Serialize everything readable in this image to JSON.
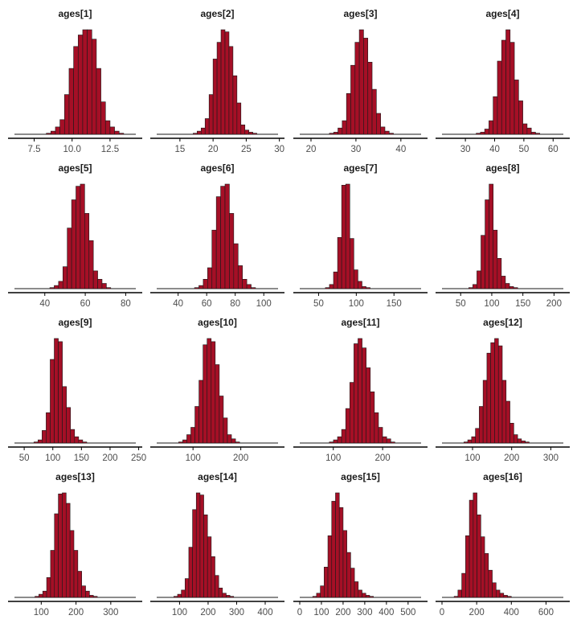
{
  "colors": {
    "bar_fill": "#a50f26",
    "bar_stroke": "#1a1a1a",
    "axis": "#000000"
  },
  "chart_data": [
    {
      "type": "bar",
      "title": "ages[1]",
      "xlim": [
        6.2,
        14.2
      ],
      "ticks": [
        7.5,
        10.0,
        12.5
      ],
      "tick_labels": [
        "7.5",
        "10.0",
        "12.5"
      ],
      "x_start": 8.3,
      "bin_width": 0.3,
      "counts": [
        0.01,
        0.03,
        0.07,
        0.14,
        0.38,
        0.63,
        0.84,
        0.95,
        1.0,
        1.0,
        0.91,
        0.63,
        0.31,
        0.13,
        0.07,
        0.03,
        0.01
      ]
    },
    {
      "type": "bar",
      "title": "ages[2]",
      "xlim": [
        11.5,
        29.8
      ],
      "ticks": [
        15,
        20,
        25,
        30
      ],
      "tick_labels": [
        "15",
        "20",
        "25",
        "30"
      ],
      "x_start": 17.0,
      "bin_width": 0.6,
      "counts": [
        0.01,
        0.03,
        0.06,
        0.15,
        0.38,
        0.72,
        0.88,
        1.0,
        0.98,
        0.84,
        0.56,
        0.3,
        0.09,
        0.04,
        0.02,
        0.01
      ]
    },
    {
      "type": "bar",
      "title": "ages[3]",
      "xlim": [
        17.5,
        44.5
      ],
      "ticks": [
        20,
        30,
        40
      ],
      "tick_labels": [
        "20",
        "30",
        "40"
      ],
      "x_start": 24.1,
      "bin_width": 0.95,
      "counts": [
        0.01,
        0.02,
        0.06,
        0.13,
        0.39,
        0.66,
        0.88,
        1.0,
        0.92,
        0.69,
        0.43,
        0.2,
        0.07,
        0.03,
        0.01
      ]
    },
    {
      "type": "bar",
      "title": "ages[4]",
      "xlim": [
        22.0,
        63.5
      ],
      "ticks": [
        30,
        40,
        50,
        60
      ],
      "tick_labels": [
        "30",
        "40",
        "50",
        "60"
      ],
      "x_start": 33.7,
      "bin_width": 1.45,
      "counts": [
        0.01,
        0.02,
        0.05,
        0.13,
        0.36,
        0.7,
        0.9,
        1.0,
        0.88,
        0.52,
        0.32,
        0.1,
        0.06,
        0.02,
        0.01
      ]
    },
    {
      "type": "bar",
      "title": "ages[5]",
      "xlim": [
        25.0,
        85.0
      ],
      "ticks": [
        40,
        60,
        80
      ],
      "tick_labels": [
        "40",
        "60",
        "80"
      ],
      "x_start": 42.5,
      "bin_width": 2.15,
      "counts": [
        0.01,
        0.03,
        0.07,
        0.21,
        0.58,
        0.85,
        0.98,
        1.0,
        0.72,
        0.46,
        0.17,
        0.09,
        0.05,
        0.01
      ]
    },
    {
      "type": "bar",
      "title": "ages[6]",
      "xlim": [
        25.0,
        110.0
      ],
      "ticks": [
        40,
        60,
        80,
        100
      ],
      "tick_labels": [
        "40",
        "60",
        "80",
        "100"
      ],
      "x_start": 51.5,
      "bin_width": 3.05,
      "counts": [
        0.01,
        0.03,
        0.09,
        0.2,
        0.56,
        0.88,
        0.98,
        1.0,
        0.72,
        0.43,
        0.22,
        0.09,
        0.04,
        0.01
      ]
    },
    {
      "type": "bar",
      "title": "ages[7]",
      "xlim": [
        25.0,
        186.0
      ],
      "ticks": [
        50,
        100,
        150
      ],
      "tick_labels": [
        "50",
        "100",
        "150"
      ],
      "x_start": 59.0,
      "bin_width": 5.4,
      "counts": [
        0.01,
        0.04,
        0.16,
        0.49,
        0.99,
        1.0,
        0.48,
        0.18,
        0.07,
        0.02,
        0.01
      ]
    },
    {
      "type": "bar",
      "title": "ages[8]",
      "xlim": [
        20.0,
        215.0
      ],
      "ticks": [
        50,
        100,
        150,
        200
      ],
      "tick_labels": [
        "50",
        "100",
        "150",
        "200"
      ],
      "x_start": 63.0,
      "bin_width": 6.55,
      "counts": [
        0.01,
        0.04,
        0.17,
        0.51,
        0.85,
        1.0,
        0.56,
        0.29,
        0.12,
        0.05,
        0.02,
        0.01
      ]
    },
    {
      "type": "bar",
      "title": "ages[9]",
      "xlim": [
        33.0,
        245.0
      ],
      "ticks": [
        50,
        100,
        150,
        200,
        250
      ],
      "tick_labels": [
        "50",
        "100",
        "150",
        "200",
        "250"
      ],
      "x_start": 67.0,
      "bin_width": 7.1,
      "counts": [
        0.01,
        0.03,
        0.12,
        0.29,
        0.8,
        1.0,
        0.97,
        0.54,
        0.34,
        0.13,
        0.06,
        0.03,
        0.01
      ]
    },
    {
      "type": "bar",
      "title": "ages[10]",
      "xlim": [
        24.0,
        278.0
      ],
      "ticks": [
        100,
        200
      ],
      "tick_labels": [
        "100",
        "200"
      ],
      "x_start": 70.0,
      "bin_width": 8.5,
      "counts": [
        0.01,
        0.03,
        0.08,
        0.15,
        0.35,
        0.6,
        0.94,
        1.0,
        0.97,
        0.75,
        0.45,
        0.24,
        0.08,
        0.04,
        0.01
      ]
    },
    {
      "type": "bar",
      "title": "ages[11]",
      "xlim": [
        32.0,
        278.0
      ],
      "ticks": [
        100,
        200
      ],
      "tick_labels": [
        "100",
        "200"
      ],
      "x_start": 92.0,
      "bin_width": 8.3,
      "counts": [
        0.01,
        0.03,
        0.06,
        0.13,
        0.33,
        0.58,
        0.95,
        1.0,
        0.91,
        0.72,
        0.49,
        0.29,
        0.15,
        0.06,
        0.04,
        0.01
      ]
    },
    {
      "type": "bar",
      "title": "ages[12]",
      "xlim": [
        22.0,
        332.0
      ],
      "ticks": [
        100,
        200,
        300
      ],
      "tick_labels": [
        "100",
        "200",
        "300"
      ],
      "x_start": 78.0,
      "bin_width": 9.8,
      "counts": [
        0.01,
        0.03,
        0.06,
        0.14,
        0.35,
        0.6,
        0.86,
        0.96,
        1.0,
        0.93,
        0.6,
        0.4,
        0.19,
        0.08,
        0.04,
        0.02,
        0.01
      ]
    },
    {
      "type": "bar",
      "title": "ages[13]",
      "xlim": [
        23.0,
        372.0
      ],
      "ticks": [
        100,
        200,
        300
      ],
      "tick_labels": [
        "100",
        "200",
        "300"
      ],
      "x_start": 82.0,
      "bin_width": 11.2,
      "counts": [
        0.01,
        0.03,
        0.06,
        0.19,
        0.45,
        0.8,
        0.99,
        1.0,
        0.9,
        0.64,
        0.45,
        0.25,
        0.11,
        0.06,
        0.02,
        0.01
      ]
    },
    {
      "type": "bar",
      "title": "ages[14]",
      "xlim": [
        20.0,
        445.0
      ],
      "ticks": [
        100,
        200,
        300,
        400
      ],
      "tick_labels": [
        "100",
        "200",
        "300",
        "400"
      ],
      "x_start": 80.0,
      "bin_width": 13.1,
      "counts": [
        0.01,
        0.03,
        0.07,
        0.18,
        0.48,
        0.84,
        1.0,
        0.98,
        0.79,
        0.58,
        0.39,
        0.21,
        0.09,
        0.04,
        0.02,
        0.01
      ]
    },
    {
      "type": "bar",
      "title": "ages[15]",
      "xlim": [
        0.0,
        560.0
      ],
      "ticks": [
        0,
        100,
        200,
        300,
        400,
        500
      ],
      "tick_labels": [
        "0",
        "100",
        "200",
        "300",
        "400",
        "500"
      ],
      "x_start": 60.0,
      "bin_width": 17.5,
      "counts": [
        0.01,
        0.04,
        0.11,
        0.29,
        0.59,
        0.92,
        1.0,
        0.86,
        0.64,
        0.43,
        0.28,
        0.15,
        0.07,
        0.04,
        0.02,
        0.01
      ]
    },
    {
      "type": "bar",
      "title": "ages[16]",
      "xlim": [
        0.0,
        700.0
      ],
      "ticks": [
        0,
        200,
        400,
        600
      ],
      "tick_labels": [
        "0",
        "200",
        "400",
        "600"
      ],
      "x_start": 70.0,
      "bin_width": 22.0,
      "counts": [
        0.01,
        0.07,
        0.23,
        0.59,
        0.93,
        1.0,
        0.79,
        0.58,
        0.42,
        0.26,
        0.14,
        0.07,
        0.04,
        0.02,
        0.01
      ]
    }
  ]
}
